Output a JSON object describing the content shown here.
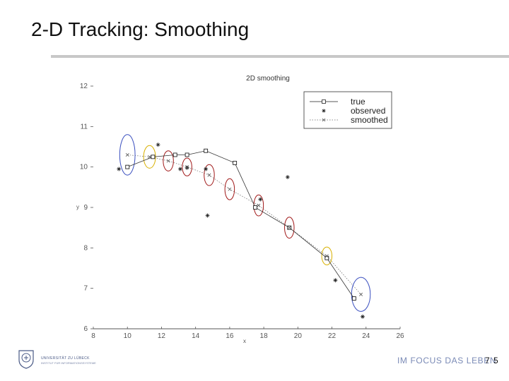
{
  "slide": {
    "title": "2-D Tracking: Smoothing",
    "page_number": "7 5",
    "footer_motto": "IM FOCUS DAS LEBEN",
    "university_name": "UNIVERSITÄT ZU LÜBECK",
    "university_sub": "INSTITUT FÜR INFORMATIONSSYSTEME"
  },
  "colors": {
    "title_rule": "#c8c8c8",
    "motto": "#7a8ab6",
    "ellipse_blue": "#3a4fbf",
    "ellipse_yellow": "#d8b000",
    "ellipse_red": "#a01818"
  },
  "chart_data": {
    "type": "scatter",
    "title": "2D smoothing",
    "xlabel": "x",
    "ylabel": "y",
    "xlim": [
      8,
      26
    ],
    "ylim": [
      6,
      12
    ],
    "xticks": [
      8,
      10,
      12,
      14,
      16,
      18,
      20,
      22,
      24,
      26
    ],
    "yticks": [
      6,
      7,
      8,
      9,
      10,
      11,
      12
    ],
    "legend_position": "top-right",
    "series": [
      {
        "name": "true",
        "marker": "square",
        "line": "solid",
        "points": [
          [
            10,
            10.0
          ],
          [
            11.5,
            10.25
          ],
          [
            12.8,
            10.3
          ],
          [
            13.5,
            10.3
          ],
          [
            14.6,
            10.4
          ],
          [
            16.3,
            10.1
          ],
          [
            17.5,
            9.0
          ],
          [
            19.5,
            8.5
          ],
          [
            21.7,
            7.75
          ],
          [
            23.3,
            6.75
          ]
        ]
      },
      {
        "name": "observed",
        "marker": "star",
        "line": "none",
        "points": [
          [
            9.5,
            9.95
          ],
          [
            11.8,
            10.55
          ],
          [
            13.1,
            9.95
          ],
          [
            13.5,
            9.98
          ],
          [
            14.6,
            9.95
          ],
          [
            14.7,
            8.8
          ],
          [
            17.8,
            9.2
          ],
          [
            19.4,
            9.75
          ],
          [
            22.2,
            7.2
          ],
          [
            23.8,
            6.3
          ]
        ]
      },
      {
        "name": "smoothed",
        "marker": "x",
        "line": "dotted",
        "points": [
          [
            10,
            10.3
          ],
          [
            11.3,
            10.25
          ],
          [
            12.4,
            10.15
          ],
          [
            13.5,
            10.0
          ],
          [
            14.8,
            9.8
          ],
          [
            16.0,
            9.45
          ],
          [
            17.7,
            9.05
          ],
          [
            19.5,
            8.5
          ],
          [
            21.7,
            7.8
          ],
          [
            23.7,
            6.85
          ]
        ],
        "uncertainty_ellipses": [
          {
            "rx": 0.45,
            "ry": 0.5,
            "color": "blue"
          },
          {
            "rx": 0.35,
            "ry": 0.28,
            "color": "yellow"
          },
          {
            "rx": 0.3,
            "ry": 0.25,
            "color": "red"
          },
          {
            "rx": 0.28,
            "ry": 0.22,
            "color": "red"
          },
          {
            "rx": 0.3,
            "ry": 0.26,
            "color": "red"
          },
          {
            "rx": 0.28,
            "ry": 0.26,
            "color": "red"
          },
          {
            "rx": 0.28,
            "ry": 0.26,
            "color": "red"
          },
          {
            "rx": 0.28,
            "ry": 0.26,
            "color": "red"
          },
          {
            "rx": 0.3,
            "ry": 0.22,
            "color": "yellow"
          },
          {
            "rx": 0.55,
            "ry": 0.42,
            "color": "blue"
          }
        ]
      }
    ]
  }
}
